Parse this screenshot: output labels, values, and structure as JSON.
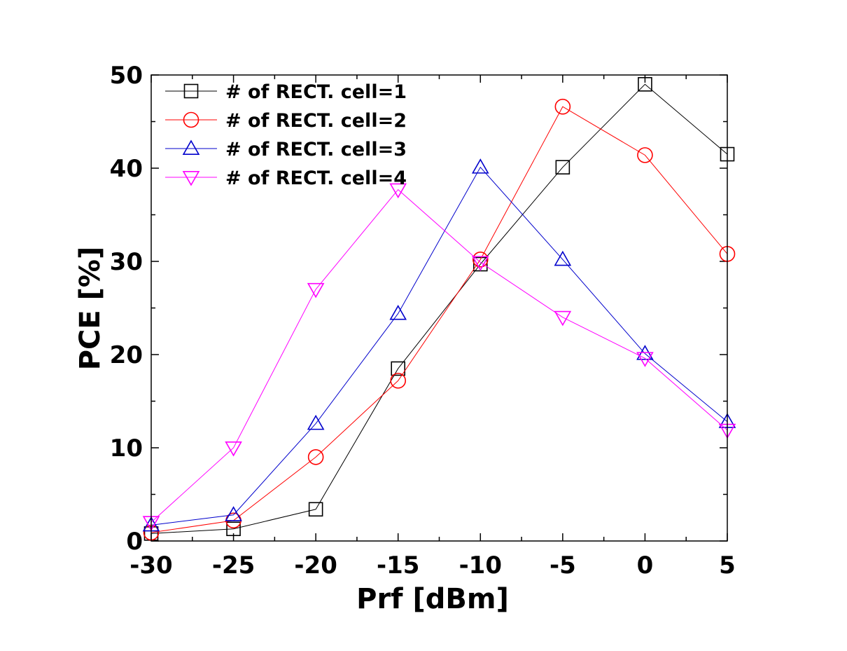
{
  "chart_data": {
    "type": "line",
    "xlabel": "Prf [dBm]",
    "ylabel": "PCE [%]",
    "xlim": [
      -30,
      5
    ],
    "ylim": [
      0,
      50
    ],
    "xticks": [
      "-30",
      "-25",
      "-20",
      "-15",
      "-10",
      "-5",
      "0",
      "5"
    ],
    "yticks": [
      "0",
      "10",
      "20",
      "30",
      "40",
      "50"
    ],
    "grid": false,
    "legend_position": "top-left",
    "x": [
      -30,
      -25,
      -20,
      -15,
      -10,
      -5,
      0,
      5
    ],
    "series": [
      {
        "name": "# of RECT. cell=1",
        "color": "#000000",
        "marker": "square",
        "values": [
          0.8,
          1.3,
          3.4,
          18.5,
          29.7,
          40.1,
          49.0,
          41.5
        ]
      },
      {
        "name": "# of RECT. cell=2",
        "color": "#ff0000",
        "marker": "circle",
        "values": [
          0.9,
          2.2,
          9.0,
          17.2,
          30.2,
          46.6,
          41.4,
          30.8
        ]
      },
      {
        "name": "# of RECT. cell=3",
        "color": "#0000cc",
        "marker": "triangle-up",
        "values": [
          1.7,
          2.8,
          12.6,
          24.4,
          40.1,
          30.2,
          20.1,
          12.8
        ]
      },
      {
        "name": "# of RECT. cell=4",
        "color": "#ff00ff",
        "marker": "triangle-down",
        "values": [
          2.0,
          10.0,
          27.0,
          37.7,
          29.9,
          24.0,
          19.6,
          11.9
        ]
      }
    ]
  }
}
